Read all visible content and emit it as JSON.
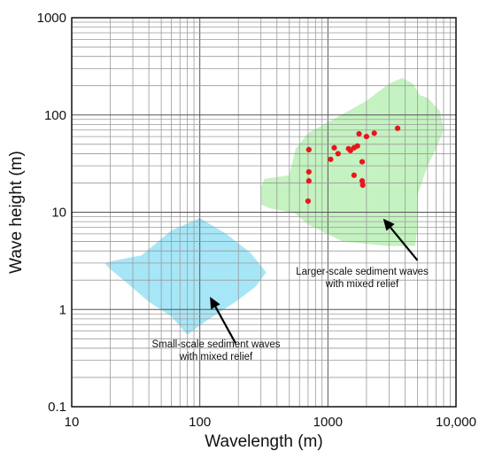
{
  "chart_data": {
    "type": "scatter",
    "x_scale": "log",
    "y_scale": "log",
    "xlim": [
      10,
      10000
    ],
    "ylim": [
      0.1,
      1000
    ],
    "grid": true,
    "xlabel": "Wavelength (m)",
    "ylabel": "Wave height (m)",
    "x_tick_labels": [
      {
        "value": 10,
        "label": "10"
      },
      {
        "value": 100,
        "label": "100"
      },
      {
        "value": 1000,
        "label": "1000"
      },
      {
        "value": 10000,
        "label": "10,000"
      }
    ],
    "y_tick_labels": [
      {
        "value": 0.1,
        "label": "0.1"
      },
      {
        "value": 1,
        "label": "1"
      },
      {
        "value": 10,
        "label": "10"
      },
      {
        "value": 100,
        "label": "100"
      },
      {
        "value": 1000,
        "label": "1000"
      }
    ],
    "regions": [
      {
        "id": "small-scale",
        "color": "#a6e6f7",
        "label_lines": [
          "Small-scale sediment waves",
          "with mixed relief"
        ],
        "polygon": [
          [
            18,
            3.0
          ],
          [
            22,
            3.2
          ],
          [
            35,
            3.6
          ],
          [
            60,
            6.5
          ],
          [
            100,
            8.7
          ],
          [
            160,
            6.0
          ],
          [
            250,
            3.8
          ],
          [
            330,
            2.4
          ],
          [
            270,
            1.7
          ],
          [
            190,
            1.2
          ],
          [
            110,
            0.75
          ],
          [
            80,
            0.55
          ],
          [
            60,
            0.85
          ],
          [
            40,
            1.2
          ],
          [
            28,
            1.8
          ],
          [
            20,
            2.6
          ]
        ]
      },
      {
        "id": "larger-scale",
        "color": "#c4f2c0",
        "label_lines": [
          "Larger-scale sediment waves",
          "with mixed relief"
        ],
        "polygon": [
          [
            320,
            22
          ],
          [
            500,
            24
          ],
          [
            560,
            45
          ],
          [
            700,
            65
          ],
          [
            1100,
            90
          ],
          [
            2000,
            140
          ],
          [
            3000,
            210
          ],
          [
            3800,
            240
          ],
          [
            4600,
            210
          ],
          [
            5200,
            160
          ],
          [
            6000,
            150
          ],
          [
            7500,
            110
          ],
          [
            8000,
            70
          ],
          [
            7000,
            45
          ],
          [
            6000,
            30
          ],
          [
            5000,
            15
          ],
          [
            5000,
            7
          ],
          [
            4800,
            4.5
          ],
          [
            3000,
            4.5
          ],
          [
            1300,
            5.0
          ],
          [
            700,
            7.5
          ],
          [
            550,
            9.8
          ],
          [
            350,
            11
          ],
          [
            300,
            12
          ],
          [
            300,
            18
          ]
        ]
      }
    ],
    "series": [
      {
        "color": "#e8161b",
        "points": [
          [
            700,
            13
          ],
          [
            710,
            21
          ],
          [
            710,
            26
          ],
          [
            710,
            44
          ],
          [
            1050,
            35
          ],
          [
            1120,
            46
          ],
          [
            1200,
            40
          ],
          [
            1450,
            45
          ],
          [
            1500,
            43
          ],
          [
            1600,
            46
          ],
          [
            1600,
            24
          ],
          [
            1700,
            48
          ],
          [
            1750,
            64
          ],
          [
            1850,
            33
          ],
          [
            1850,
            21
          ],
          [
            1870,
            19
          ],
          [
            2000,
            60
          ],
          [
            2300,
            65
          ],
          [
            3500,
            73
          ]
        ]
      }
    ],
    "annotations": [
      {
        "region": "small-scale",
        "text_lines": [
          "Small-scale sediment waves",
          "with mixed relief"
        ],
        "arrow_from": [
          190,
          0.45
        ],
        "arrow_to": [
          120,
          1.35
        ]
      },
      {
        "region": "larger-scale",
        "text_lines": [
          "Larger-scale sediment waves",
          "with mixed relief"
        ],
        "arrow_from": [
          5000,
          3.2
        ],
        "arrow_to": [
          2700,
          8.6
        ]
      }
    ]
  }
}
